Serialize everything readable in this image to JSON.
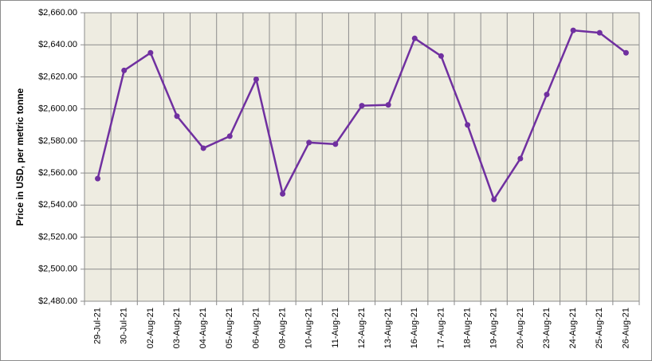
{
  "chart_data": {
    "type": "line",
    "y_axis_label": "Price in USD, per metric tonne",
    "categories": [
      "29-Jul-21",
      "30-Jul-21",
      "02-Aug-21",
      "03-Aug-21",
      "04-Aug-21",
      "05-Aug-21",
      "06-Aug-21",
      "09-Aug-21",
      "10-Aug-21",
      "11-Aug-21",
      "12-Aug-21",
      "13-Aug-21",
      "16-Aug-21",
      "17-Aug-21",
      "18-Aug-21",
      "19-Aug-21",
      "20-Aug-21",
      "23-Aug-21",
      "24-Aug-21",
      "25-Aug-21",
      "26-Aug-21"
    ],
    "values": [
      2556.5,
      2624,
      2635,
      2595.5,
      2575.5,
      2583,
      2618.5,
      2547,
      2579,
      2578,
      2602,
      2602.5,
      2644,
      2633,
      2590,
      2543.5,
      2569,
      2609,
      2649,
      2647.5,
      2635
    ],
    "color": "#7030a0",
    "ylim": [
      2480,
      2660
    ],
    "yticks": [
      {
        "value": 2480,
        "label": "$2,480.00"
      },
      {
        "value": 2500,
        "label": "$2,500.00"
      },
      {
        "value": 2520,
        "label": "$2,520.00"
      },
      {
        "value": 2540,
        "label": "$2,540.00"
      },
      {
        "value": 2560,
        "label": "$2,560.00"
      },
      {
        "value": 2580,
        "label": "$2,580.00"
      },
      {
        "value": 2600,
        "label": "$2,600.00"
      },
      {
        "value": 2620,
        "label": "$2,620.00"
      },
      {
        "value": 2640,
        "label": "$2,640.00"
      },
      {
        "value": 2660,
        "label": "$2,660.00"
      }
    ],
    "grid": true
  }
}
